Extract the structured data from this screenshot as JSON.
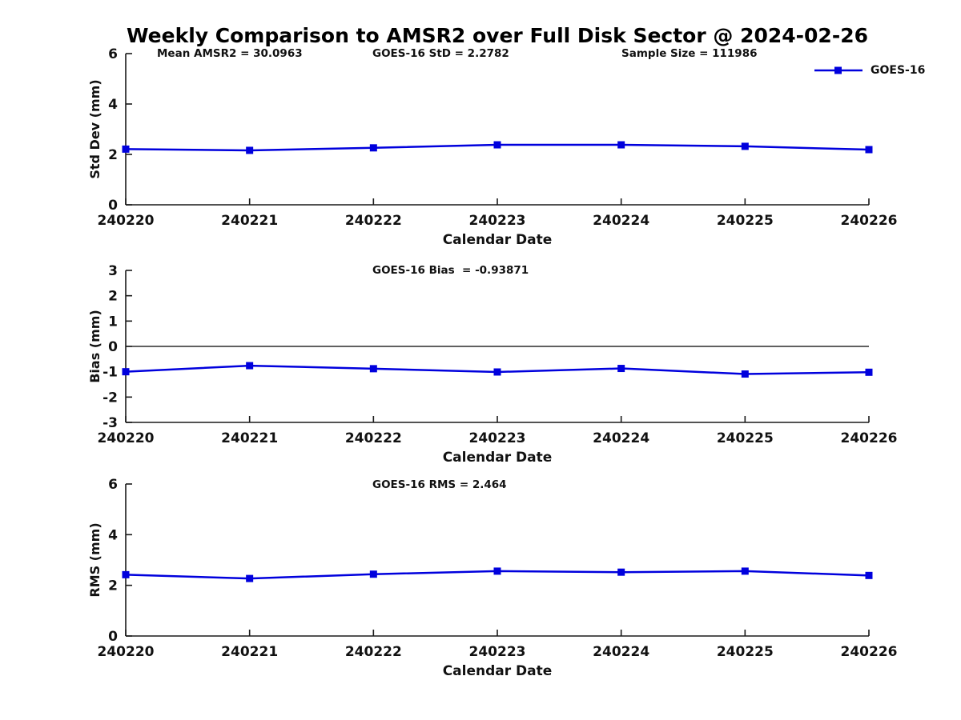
{
  "title": "Weekly Comparison to AMSR2 over Full Disk Sector @ 2024-02-26",
  "legend": {
    "label": "GOES-16"
  },
  "colors": {
    "series": "#0000dd",
    "axis": "#1a1a1a",
    "zero_line": "#000000"
  },
  "chart_data": [
    {
      "type": "line",
      "name": "std-dev",
      "annotations": [
        "Mean AMSR2 = 30.0963",
        "GOES-16 StD = 2.2782",
        "Sample Size = 111986"
      ],
      "categories": [
        "240220",
        "240221",
        "240222",
        "240223",
        "240224",
        "240225",
        "240226"
      ],
      "series": [
        {
          "name": "GOES-16",
          "values": [
            2.21,
            2.16,
            2.26,
            2.38,
            2.38,
            2.32,
            2.19
          ]
        }
      ],
      "xlabel": "Calendar Date",
      "ylabel": "Std Dev (mm)",
      "ylim": [
        0,
        6
      ],
      "yticks": [
        0,
        2,
        4,
        6
      ],
      "zero_line": false,
      "grid": false,
      "legend_position": "top-right",
      "marker": "square"
    },
    {
      "type": "line",
      "name": "bias",
      "annotations": [
        "GOES-16 Bias  = -0.93871"
      ],
      "categories": [
        "240220",
        "240221",
        "240222",
        "240223",
        "240224",
        "240225",
        "240226"
      ],
      "series": [
        {
          "name": "GOES-16",
          "values": [
            -1.0,
            -0.76,
            -0.88,
            -1.01,
            -0.87,
            -1.09,
            -1.02
          ]
        }
      ],
      "xlabel": "Calendar Date",
      "ylabel": "Bias (mm)",
      "ylim": [
        -3,
        3
      ],
      "yticks": [
        -3,
        -2,
        -1,
        0,
        1,
        2,
        3
      ],
      "zero_line": true,
      "grid": false,
      "legend_position": "none",
      "marker": "square"
    },
    {
      "type": "line",
      "name": "rms",
      "annotations": [
        "GOES-16 RMS = 2.464"
      ],
      "categories": [
        "240220",
        "240221",
        "240222",
        "240223",
        "240224",
        "240225",
        "240226"
      ],
      "series": [
        {
          "name": "GOES-16",
          "values": [
            2.42,
            2.27,
            2.44,
            2.56,
            2.52,
            2.56,
            2.39
          ]
        }
      ],
      "xlabel": "Calendar Date",
      "ylabel": "RMS (mm)",
      "ylim": [
        0,
        6
      ],
      "yticks": [
        0,
        2,
        4,
        6
      ],
      "zero_line": false,
      "grid": false,
      "legend_position": "none",
      "marker": "square"
    }
  ]
}
